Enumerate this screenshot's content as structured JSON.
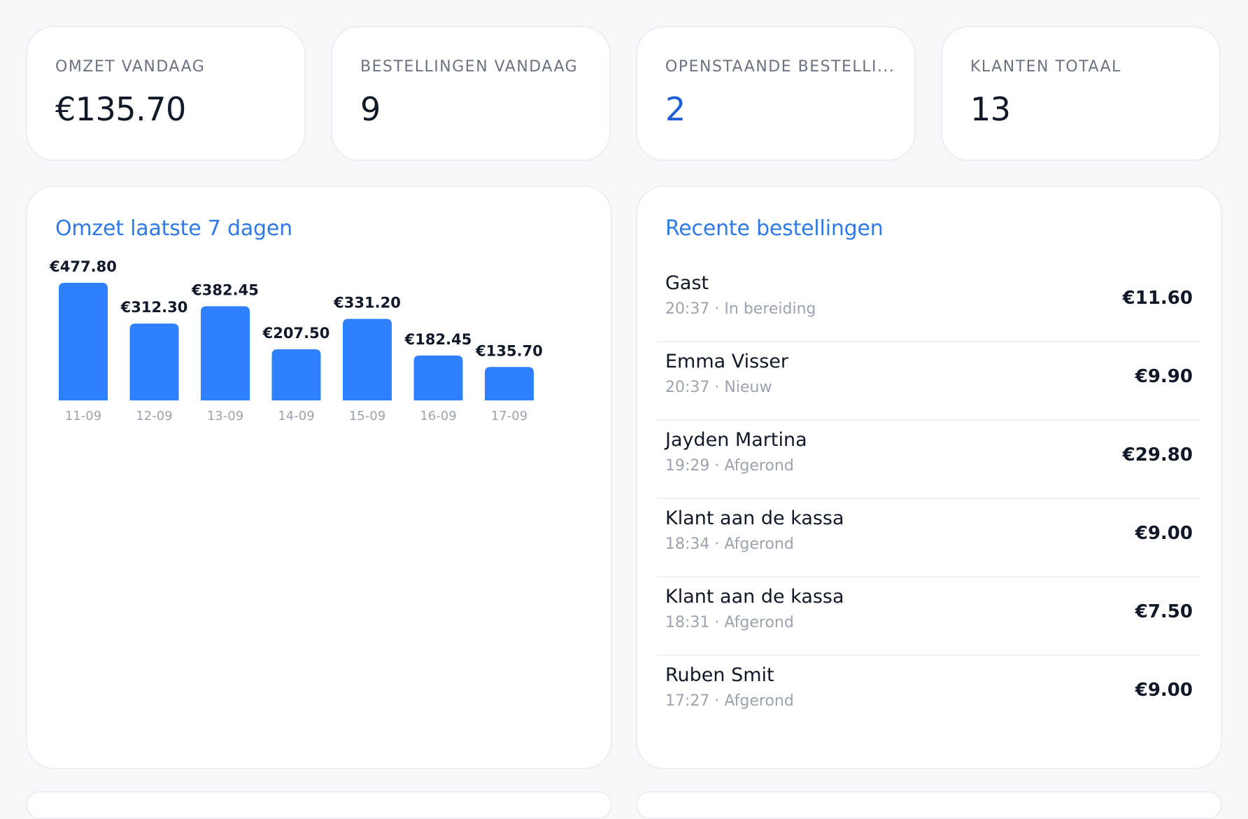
{
  "kpis": [
    {
      "label": "OMZET VANDAAG",
      "value": "€135.70"
    },
    {
      "label": "BESTELLINGEN VANDAAG",
      "value": "9"
    },
    {
      "label": "OPENSTAANDE BESTELLI...",
      "value": "2"
    },
    {
      "label": "KLANTEN TOTAAL",
      "value": "13"
    }
  ],
  "revenue_panel": {
    "title": "Omzet laatste 7 dagen"
  },
  "orders_panel": {
    "title": "Recente bestellingen",
    "orders": [
      {
        "name": "Gast",
        "time": "20:37",
        "status": "In bereiding",
        "amount": "€11.60"
      },
      {
        "name": "Emma Visser",
        "time": "20:37",
        "status": "Nieuw",
        "amount": "€9.90"
      },
      {
        "name": "Jayden Martina",
        "time": "19:29",
        "status": "Afgerond",
        "amount": "€29.80"
      },
      {
        "name": "Klant aan de kassa",
        "time": "18:34",
        "status": "Afgerond",
        "amount": "€9.00"
      },
      {
        "name": "Klant aan de kassa",
        "time": "18:31",
        "status": "Afgerond",
        "amount": "€7.50"
      },
      {
        "name": "Ruben Smit",
        "time": "17:27",
        "status": "Afgerond",
        "amount": "€9.00"
      }
    ]
  },
  "colors": {
    "accent": "#2f7ae5",
    "bar": "#2f80ff",
    "kpi_highlight": "#1f5fd6"
  },
  "chart_data": {
    "type": "bar",
    "title": "Omzet laatste 7 dagen",
    "categories": [
      "11-09",
      "12-09",
      "13-09",
      "14-09",
      "15-09",
      "16-09",
      "17-09"
    ],
    "values": [
      477.8,
      312.3,
      382.45,
      207.5,
      331.2,
      182.45,
      135.7
    ],
    "value_labels": [
      "€477.80",
      "€312.30",
      "€382.45",
      "€207.50",
      "€331.20",
      "€182.45",
      "€135.70"
    ],
    "xlabel": "",
    "ylabel": "",
    "ylim": [
      0,
      477.8
    ],
    "grid": false,
    "legend": "none"
  }
}
